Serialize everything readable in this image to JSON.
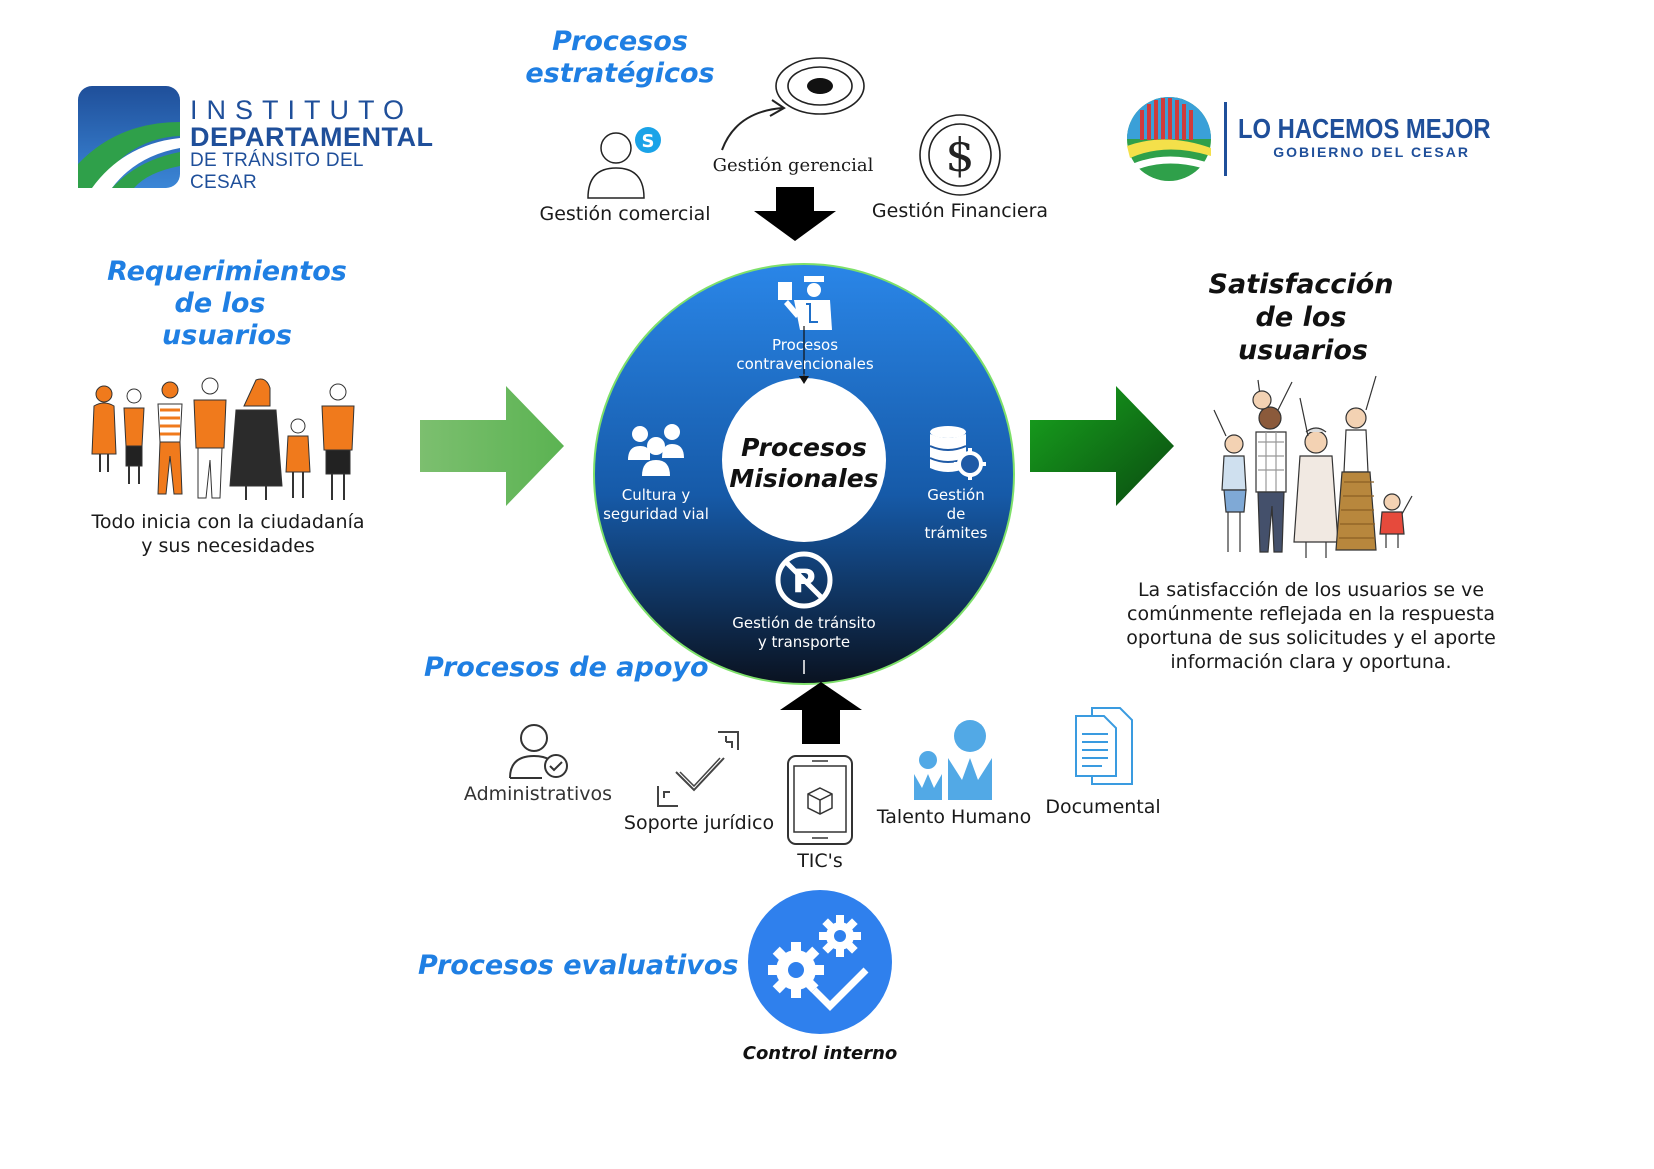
{
  "logos": {
    "left": {
      "line1": "INSTITUTO",
      "line2": "DEPARTAMENTAL",
      "line3": "DE TRÁNSITO DEL CESAR"
    },
    "right": {
      "line1": "LO HACEMOS MEJOR",
      "line2": "GOBIERNO DEL CESAR"
    }
  },
  "strategic": {
    "heading_line1": "Procesos",
    "heading_line2": "estratégicos",
    "items": [
      {
        "label": "Gestión comercial",
        "icon": "user-skype-icon"
      },
      {
        "label": "Gestión gerencial",
        "icon": "target-icon"
      },
      {
        "label": "Gestión Financiera",
        "icon": "dollar-coin-icon"
      }
    ]
  },
  "requirements": {
    "heading_line1": "Requerimientos",
    "heading_line2": "de los",
    "heading_line3": "usuarios",
    "caption_line1": "Todo inicia con la ciudadanía",
    "caption_line2": "y sus necesidades",
    "illustration": "people-group-icon"
  },
  "satisfaction": {
    "heading_line1": "Satisfacción",
    "heading_line2": "de los",
    "heading_line3": "usuarios",
    "text_line1": "La satisfacción de los usuarios se ve",
    "text_line2": "comúnmente reflejada en la respuesta",
    "text_line3": "oportuna de sus solicitudes y el aporte",
    "text_line4": "información clara y oportuna.",
    "illustration": "happy-family-icon"
  },
  "missional": {
    "center_line1": "Procesos",
    "center_line2": "Misionales",
    "items": {
      "top_line1": "Procesos",
      "top_line2": "contravencionales",
      "left_line1": "Cultura y",
      "left_line2": "seguridad vial",
      "right_line1": "Gestión",
      "right_line2": "de",
      "right_line3": "trámites",
      "bottom_line1": "Gestión de tránsito",
      "bottom_line2": "y transporte"
    },
    "colors": {
      "ring_top": "#2a86e8",
      "ring_bottom": "#0a1220",
      "ring_border": "#7ee06a"
    }
  },
  "support": {
    "heading": "Procesos de apoyo",
    "items": [
      {
        "label": "Administrativos",
        "icon": "user-check-icon"
      },
      {
        "label": "Soporte jurídico",
        "icon": "checkmark-corners-icon"
      },
      {
        "label": "TIC's",
        "icon": "tablet-box-icon"
      },
      {
        "label": "Talento Humano",
        "icon": "people-blue-icon"
      },
      {
        "label": "Documental",
        "icon": "documents-icon"
      }
    ]
  },
  "evaluative": {
    "heading": "Procesos evaluativos",
    "label": "Control interno",
    "icon": "gears-check-icon",
    "color": "#2f80ed"
  },
  "colors": {
    "heading_blue": "#1f7fe3",
    "arrow_left": "#6fbf6a",
    "arrow_right": "#129a1a",
    "people_orange": "#f07a1c"
  }
}
